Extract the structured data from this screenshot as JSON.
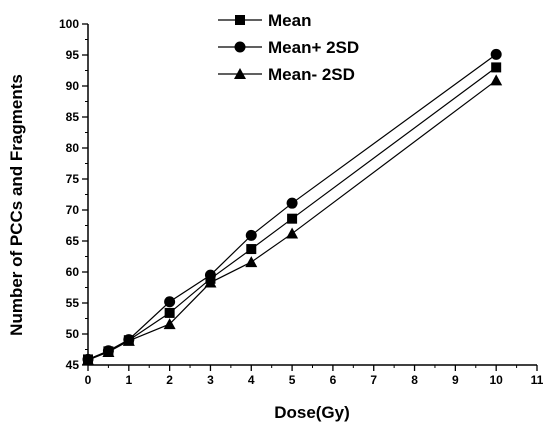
{
  "chart_data": {
    "type": "line",
    "title": "",
    "xlabel": "Dose(Gy)",
    "ylabel": "Number of PCCs and Fragments",
    "xlim": [
      0,
      11
    ],
    "ylim": [
      45,
      100
    ],
    "x_ticks": [
      0,
      1,
      2,
      3,
      4,
      5,
      6,
      7,
      8,
      9,
      10,
      11
    ],
    "y_ticks": [
      45,
      50,
      55,
      60,
      65,
      70,
      75,
      80,
      85,
      90,
      95,
      100
    ],
    "grid": false,
    "legend_position": "top-left",
    "x": [
      0,
      0.5,
      1,
      2,
      3,
      4,
      5,
      10
    ],
    "series": [
      {
        "name": "Mean",
        "marker": "square",
        "values": [
          45.9,
          47.2,
          49.0,
          53.4,
          58.9,
          63.7,
          68.6,
          93.0
        ]
      },
      {
        "name": "Mean+ 2SD",
        "marker": "circle",
        "values": [
          45.9,
          47.3,
          49.1,
          55.2,
          59.5,
          65.9,
          71.1,
          95.1
        ]
      },
      {
        "name": "Mean- 2SD",
        "marker": "triangle",
        "values": [
          45.8,
          47.1,
          48.9,
          51.6,
          58.3,
          61.6,
          66.2,
          90.9
        ]
      }
    ]
  }
}
